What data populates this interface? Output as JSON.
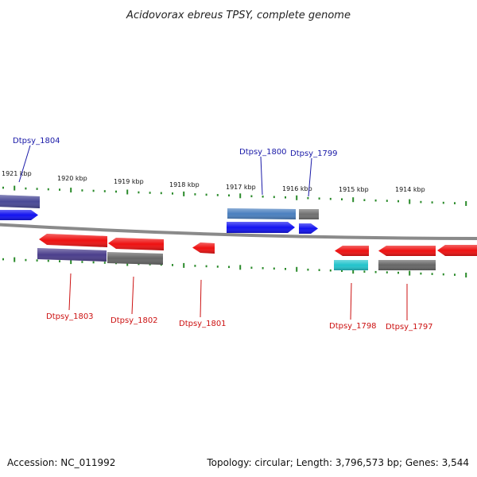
{
  "title": "Acidovorax ebreus TPSY, complete genome",
  "footer": {
    "accession": "Accession: NC_011992",
    "summary": "Topology: circular; Length: 3,796,573 bp; Genes: 3,544"
  },
  "colors": {
    "forward_label": "#1a1aa8",
    "reverse_label": "#cc1111",
    "tick": "#2a8a2a",
    "backbone": "#8a8a8a"
  },
  "scale_labels": [
    "1921 kbp",
    "1920 kbp",
    "1919 kbp",
    "1918 kbp",
    "1917 kbp",
    "1916 kbp",
    "1915 kbp",
    "1914 kbp"
  ],
  "genes": [
    {
      "label": "Dtpsy_1804",
      "strand": "forward",
      "color": "#484896"
    },
    {
      "label": "Dtpsy_1800",
      "strand": "forward",
      "color": "#4a7fbf"
    },
    {
      "label": "Dtpsy_1799",
      "strand": "forward",
      "color": "#707070"
    },
    {
      "label": "Dtpsy_1803",
      "strand": "reverse",
      "color": "#4b3e8c"
    },
    {
      "label": "Dtpsy_1802",
      "strand": "reverse",
      "color": "#666666"
    },
    {
      "label": "Dtpsy_1801",
      "strand": "reverse",
      "color": "#ee1111"
    },
    {
      "label": "Dtpsy_1798",
      "strand": "reverse",
      "color": "#22c4cc"
    },
    {
      "label": "Dtpsy_1797",
      "strand": "reverse",
      "color": "#666666"
    }
  ]
}
